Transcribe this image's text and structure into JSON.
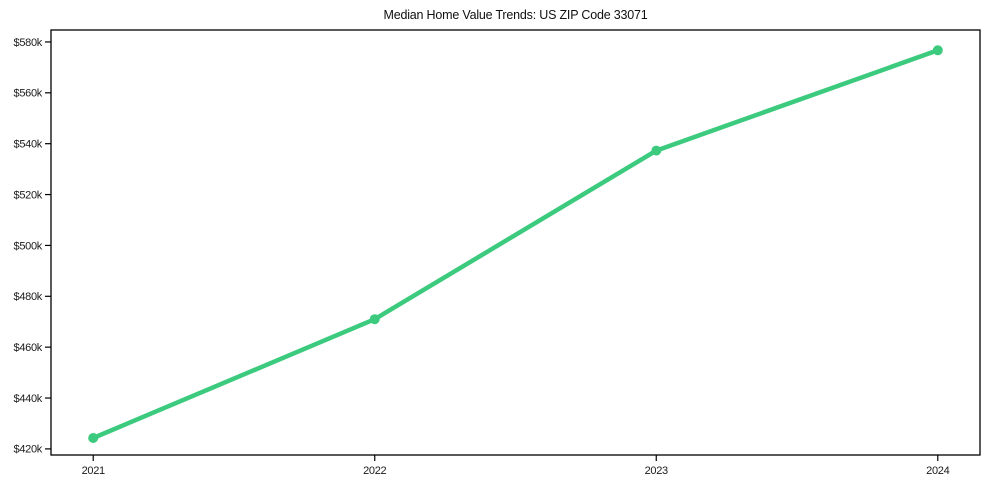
{
  "chart_data": {
    "type": "line",
    "title": "Median Home Value Trends: US ZIP Code 33071",
    "x": [
      2021,
      2022,
      2023,
      2024
    ],
    "x_tick_labels": [
      "2021",
      "2022",
      "2023",
      "2024"
    ],
    "values": [
      424300,
      471000,
      537300,
      576700
    ],
    "y_ticks": [
      420000,
      440000,
      460000,
      480000,
      500000,
      520000,
      540000,
      560000,
      580000
    ],
    "y_tick_labels": [
      "$420k",
      "$440k",
      "$460k",
      "$480k",
      "$500k",
      "$520k",
      "$540k",
      "$560k",
      "$580k"
    ],
    "xlim": [
      2020.85,
      2024.15
    ],
    "ylim": [
      417600,
      584700
    ],
    "grid": false,
    "legend": false,
    "line_color": "#3ccb7e",
    "marker": "circle",
    "marker_radius": 5,
    "line_width": 4.5,
    "axis_color": "#000000",
    "background": "#ffffff"
  }
}
